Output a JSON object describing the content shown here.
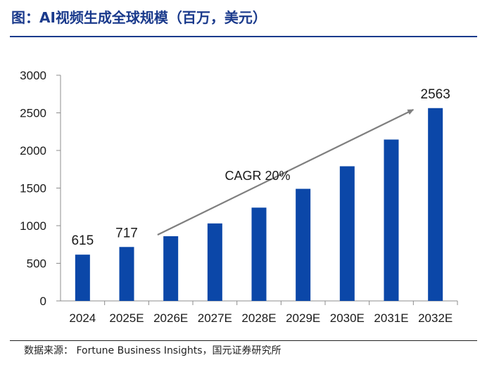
{
  "header": {
    "title": "图：AI视频生成全球规模（百万，美元）"
  },
  "footer": {
    "source": "数据来源： Fortune Business Insights，国元证券研究所"
  },
  "chart_data": {
    "type": "bar",
    "title": "图：AI视频生成全球规模（百万，美元）",
    "categories": [
      "2024",
      "2025E",
      "2026E",
      "2027E",
      "2028E",
      "2029E",
      "2030E",
      "2031E",
      "2032E"
    ],
    "series": [
      {
        "values": [
          615,
          717,
          860,
          1030,
          1240,
          1490,
          1790,
          2145,
          2563
        ]
      }
    ],
    "data_labels": [
      {
        "index": 0,
        "text": "615"
      },
      {
        "index": 1,
        "text": "717"
      },
      {
        "index": 8,
        "text": "2563"
      }
    ],
    "ylim": [
      0,
      3000
    ],
    "yticks": [
      0,
      500,
      1000,
      1500,
      2000,
      2500,
      3000
    ],
    "grid": false,
    "legend": "none",
    "annotation": {
      "text": "CAGR 20%",
      "from_index": 1.7,
      "to_index": 7.5
    },
    "colors": {
      "bar": "#0b47a8",
      "arrow": "#7f7f7f",
      "title": "#1a3a8c"
    }
  }
}
